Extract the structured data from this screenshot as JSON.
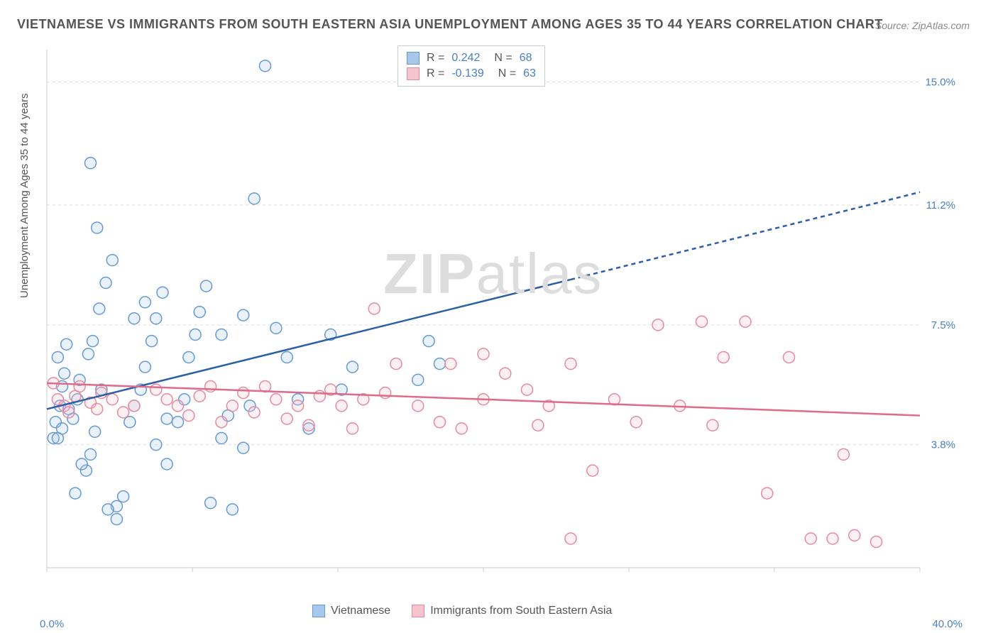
{
  "title": "VIETNAMESE VS IMMIGRANTS FROM SOUTH EASTERN ASIA UNEMPLOYMENT AMONG AGES 35 TO 44 YEARS CORRELATION CHART",
  "source": "Source: ZipAtlas.com",
  "watermark_a": "ZIP",
  "watermark_b": "atlas",
  "y_axis_label": "Unemployment Among Ages 35 to 44 years",
  "chart": {
    "type": "scatter",
    "background_color": "#ffffff",
    "grid_color": "#dddddd",
    "axis_color": "#cccccc",
    "tick_label_color": "#4a7fc4",
    "xlim": [
      0,
      40
    ],
    "ylim": [
      0,
      16
    ],
    "x_ticks": [
      0,
      6.67,
      13.33,
      20,
      26.67,
      33.33,
      40
    ],
    "y_ticks": [
      3.8,
      7.5,
      11.2,
      15.0
    ],
    "x_start_label": "0.0%",
    "x_end_label": "40.0%",
    "y_tick_labels": [
      "3.8%",
      "7.5%",
      "11.2%",
      "15.0%"
    ],
    "marker_radius": 8,
    "marker_stroke_width": 1.5,
    "marker_fill_opacity": 0.25,
    "line_width": 2.5,
    "series": [
      {
        "name": "Vietnamese",
        "color_fill": "#a8c8eb",
        "color_stroke": "#6699d1",
        "line_color": "#2a5fa8",
        "R": "0.242",
        "N": "68",
        "trend": {
          "x1": 0,
          "y1": 4.9,
          "x2": 24,
          "y2": 8.9,
          "x2_ext": 40,
          "y2_ext": 11.6
        },
        "points": [
          [
            0.4,
            4.5
          ],
          [
            0.6,
            5.0
          ],
          [
            0.7,
            5.6
          ],
          [
            0.8,
            6.0
          ],
          [
            0.5,
            6.5
          ],
          [
            0.9,
            6.9
          ],
          [
            0.3,
            4.0
          ],
          [
            1.2,
            4.6
          ],
          [
            1.4,
            5.2
          ],
          [
            1.5,
            5.8
          ],
          [
            1.8,
            3.0
          ],
          [
            2.0,
            3.5
          ],
          [
            2.2,
            4.2
          ],
          [
            2.5,
            5.5
          ],
          [
            0.5,
            4.0
          ],
          [
            0.7,
            4.3
          ],
          [
            1.0,
            4.9
          ],
          [
            1.3,
            2.3
          ],
          [
            1.6,
            3.2
          ],
          [
            1.9,
            6.6
          ],
          [
            2.1,
            7.0
          ],
          [
            2.4,
            8.0
          ],
          [
            2.7,
            8.8
          ],
          [
            3.0,
            9.5
          ],
          [
            2.0,
            12.5
          ],
          [
            2.3,
            10.5
          ],
          [
            3.2,
            1.9
          ],
          [
            3.5,
            2.2
          ],
          [
            3.8,
            4.5
          ],
          [
            4.0,
            5.0
          ],
          [
            4.3,
            5.5
          ],
          [
            4.5,
            6.2
          ],
          [
            4.8,
            7.0
          ],
          [
            5.0,
            7.7
          ],
          [
            5.3,
            8.5
          ],
          [
            5.5,
            3.2
          ],
          [
            6.0,
            4.5
          ],
          [
            6.3,
            5.2
          ],
          [
            6.5,
            6.5
          ],
          [
            6.8,
            7.2
          ],
          [
            7.0,
            7.9
          ],
          [
            7.3,
            8.7
          ],
          [
            7.5,
            2.0
          ],
          [
            8.0,
            4.0
          ],
          [
            8.3,
            4.7
          ],
          [
            8.5,
            1.8
          ],
          [
            9.0,
            3.7
          ],
          [
            9.3,
            5.0
          ],
          [
            9.5,
            11.4
          ],
          [
            10.0,
            15.5
          ],
          [
            10.5,
            7.4
          ],
          [
            11.0,
            6.5
          ],
          [
            11.5,
            5.2
          ],
          [
            12.0,
            4.3
          ],
          [
            13.0,
            7.2
          ],
          [
            13.5,
            5.5
          ],
          [
            14.0,
            6.2
          ],
          [
            17.0,
            5.8
          ],
          [
            17.5,
            7.0
          ],
          [
            18.0,
            6.3
          ],
          [
            2.8,
            1.8
          ],
          [
            3.2,
            1.5
          ],
          [
            4.0,
            7.7
          ],
          [
            4.5,
            8.2
          ],
          [
            5.0,
            3.8
          ],
          [
            5.5,
            4.6
          ],
          [
            8.0,
            7.2
          ],
          [
            9.0,
            7.8
          ]
        ]
      },
      {
        "name": "Immigrants from South Eastern Asia",
        "color_fill": "#f7c3cf",
        "color_stroke": "#e5899f",
        "line_color": "#e06a8a",
        "R": "-0.139",
        "N": "63",
        "trend": {
          "x1": 0,
          "y1": 5.7,
          "x2": 40,
          "y2": 4.7
        },
        "points": [
          [
            0.3,
            5.7
          ],
          [
            0.5,
            5.2
          ],
          [
            0.8,
            5.0
          ],
          [
            1.0,
            4.8
          ],
          [
            1.3,
            5.3
          ],
          [
            1.5,
            5.6
          ],
          [
            2.0,
            5.1
          ],
          [
            2.3,
            4.9
          ],
          [
            2.5,
            5.4
          ],
          [
            3.0,
            5.2
          ],
          [
            3.5,
            4.8
          ],
          [
            4.0,
            5.0
          ],
          [
            5.0,
            5.5
          ],
          [
            5.5,
            5.2
          ],
          [
            6.0,
            5.0
          ],
          [
            6.5,
            4.7
          ],
          [
            7.0,
            5.3
          ],
          [
            7.5,
            5.6
          ],
          [
            8.0,
            4.5
          ],
          [
            8.5,
            5.0
          ],
          [
            9.0,
            5.4
          ],
          [
            9.5,
            4.8
          ],
          [
            10.0,
            5.6
          ],
          [
            10.5,
            5.2
          ],
          [
            11.0,
            4.6
          ],
          [
            11.5,
            5.0
          ],
          [
            12.0,
            4.4
          ],
          [
            12.5,
            5.3
          ],
          [
            13.0,
            5.5
          ],
          [
            13.5,
            5.0
          ],
          [
            14.0,
            4.3
          ],
          [
            14.5,
            5.2
          ],
          [
            15.0,
            8.0
          ],
          [
            15.5,
            5.4
          ],
          [
            16.0,
            6.3
          ],
          [
            17.0,
            5.0
          ],
          [
            18.0,
            4.5
          ],
          [
            19.0,
            4.3
          ],
          [
            20.0,
            5.2
          ],
          [
            21.0,
            6.0
          ],
          [
            22.0,
            5.5
          ],
          [
            22.5,
            4.4
          ],
          [
            23.0,
            5.0
          ],
          [
            24.0,
            6.3
          ],
          [
            25.0,
            3.0
          ],
          [
            26.0,
            5.2
          ],
          [
            27.0,
            4.5
          ],
          [
            28.0,
            7.5
          ],
          [
            29.0,
            5.0
          ],
          [
            30.0,
            7.6
          ],
          [
            30.5,
            4.4
          ],
          [
            31.0,
            6.5
          ],
          [
            32.0,
            7.6
          ],
          [
            33.0,
            2.3
          ],
          [
            34.0,
            6.5
          ],
          [
            35.0,
            0.9
          ],
          [
            36.0,
            0.9
          ],
          [
            36.5,
            3.5
          ],
          [
            37.0,
            1.0
          ],
          [
            38.0,
            0.8
          ],
          [
            24.0,
            0.9
          ],
          [
            20.0,
            6.6
          ],
          [
            18.5,
            6.3
          ]
        ]
      }
    ]
  },
  "legend": {
    "series1": "Vietnamese",
    "series2": "Immigrants from South Eastern Asia"
  }
}
